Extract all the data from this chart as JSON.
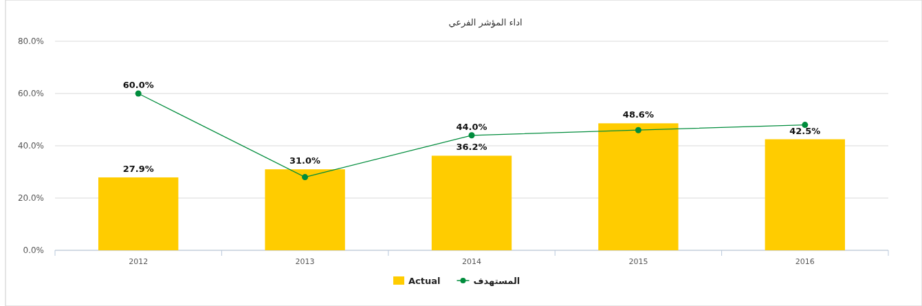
{
  "chart_data": {
    "type": "bar",
    "title": "اداء المؤشر الفرعي",
    "categories": [
      "2012",
      "2013",
      "2014",
      "2015",
      "2016"
    ],
    "series": [
      {
        "name": "Actual",
        "color": "#ffcc00",
        "values": [
          27.9,
          31.0,
          36.2,
          48.6,
          42.5
        ],
        "value_labels": [
          "27.9%",
          "31.0%",
          "36.2%",
          "48.6%",
          "42.5%"
        ]
      },
      {
        "name": "المستهدف",
        "type": "line",
        "color": "#008c3c",
        "values": [
          60,
          28,
          44,
          46,
          48
        ],
        "value_labels": [
          "60.0%",
          null,
          "44.0%",
          null,
          null
        ]
      }
    ],
    "ylim": [
      0,
      80
    ],
    "yticks": [
      {
        "value": 0,
        "label": "0.0%"
      },
      {
        "value": 20,
        "label": "20.0%"
      },
      {
        "value": 40,
        "label": "40.0%"
      },
      {
        "value": 60,
        "label": "60.0%"
      },
      {
        "value": 80,
        "label": "80.0%"
      }
    ],
    "grid": "y",
    "legend": "bottom",
    "marker": "circle",
    "line_style": "solid"
  }
}
